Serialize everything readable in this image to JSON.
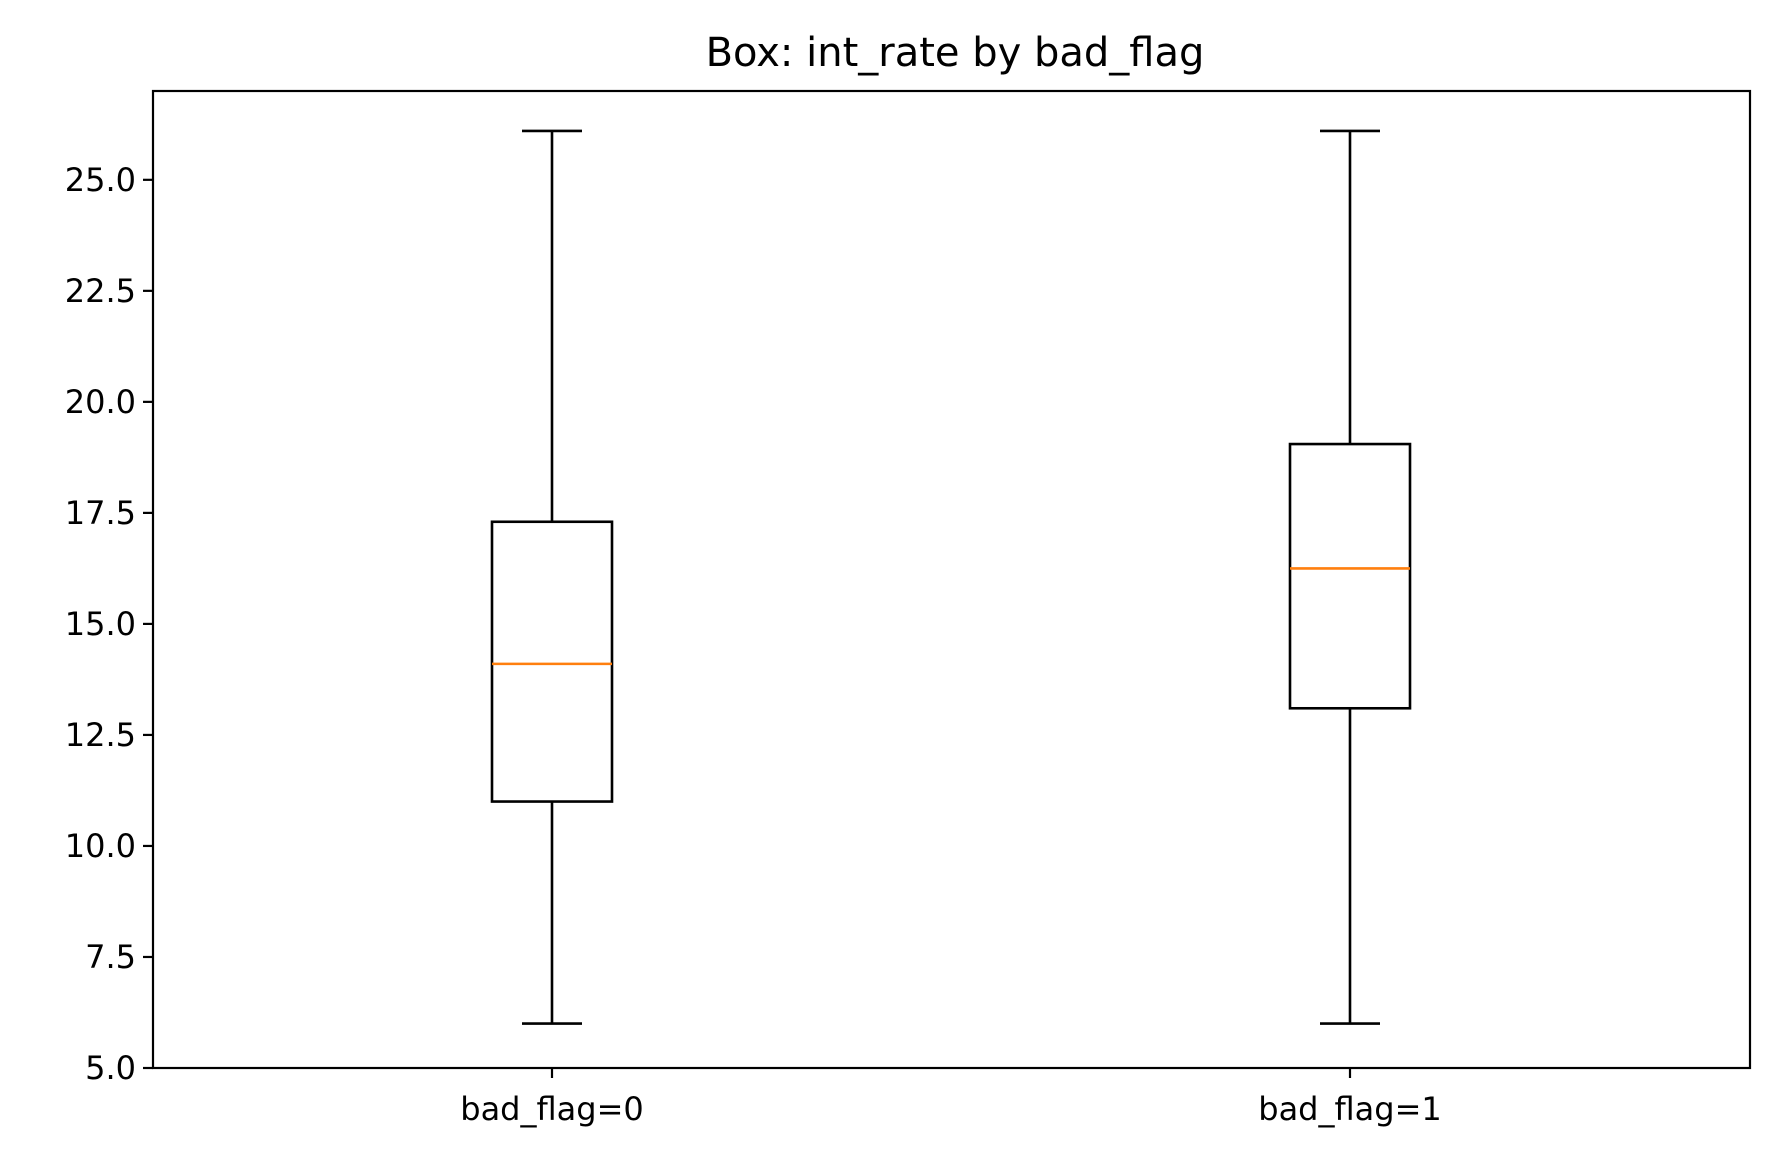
{
  "chart_data": {
    "type": "box",
    "title": "Box: int_rate by bad_flag",
    "xlabel": "",
    "ylabel": "",
    "ylim": [
      5.0,
      27.0
    ],
    "yticks": [
      "5.0",
      "7.5",
      "10.0",
      "12.5",
      "15.0",
      "17.5",
      "20.0",
      "22.5",
      "25.0"
    ],
    "categories": [
      "bad_flag=0",
      "bad_flag=1"
    ],
    "boxes": [
      {
        "category": "bad_flag=0",
        "whisker_low": 6.0,
        "q1": 11.0,
        "median": 14.1,
        "q3": 17.3,
        "whisker_high": 26.1
      },
      {
        "category": "bad_flag=1",
        "whisker_low": 6.0,
        "q1": 13.1,
        "median": 16.25,
        "q3": 19.05,
        "whisker_high": 26.1
      }
    ],
    "grid": false,
    "colors": {
      "box": "#000000",
      "median": "#ff7f0e"
    }
  }
}
